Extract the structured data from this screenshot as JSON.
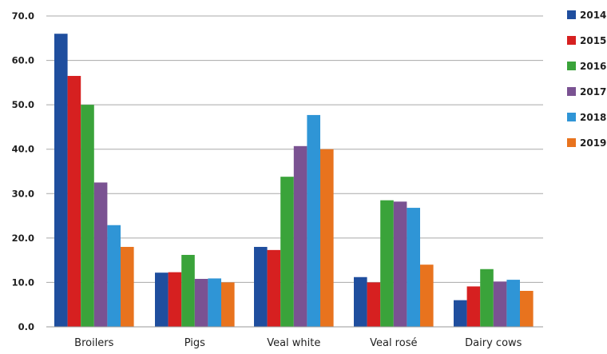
{
  "chart_data": {
    "type": "bar",
    "title": "",
    "xlabel": "",
    "ylabel": "",
    "ylim": [
      0,
      70
    ],
    "yticks": [
      "0.0",
      "10.0",
      "20.0",
      "30.0",
      "40.0",
      "50.0",
      "60.0",
      "70.0"
    ],
    "grid": true,
    "legend_position": "right",
    "categories": [
      "Broilers",
      "Pigs",
      "Veal white",
      "Veal rosé",
      "Dairy cows"
    ],
    "series": [
      {
        "name": "2014",
        "color": "#1f4e9e",
        "values": [
          66.0,
          12.2,
          18.0,
          11.2,
          6.0
        ]
      },
      {
        "name": "2015",
        "color": "#d62020",
        "values": [
          56.5,
          12.3,
          17.3,
          10.0,
          9.1
        ]
      },
      {
        "name": "2016",
        "color": "#3aa33a",
        "values": [
          50.0,
          16.2,
          33.8,
          28.5,
          13.0
        ]
      },
      {
        "name": "2017",
        "color": "#7a5292",
        "values": [
          32.5,
          10.8,
          40.7,
          28.2,
          10.2
        ]
      },
      {
        "name": "2018",
        "color": "#2f95d6",
        "values": [
          22.9,
          10.9,
          47.7,
          26.8,
          10.6
        ]
      },
      {
        "name": "2019",
        "color": "#e8731e",
        "values": [
          18.0,
          10.0,
          40.0,
          14.0,
          8.1
        ]
      }
    ]
  }
}
